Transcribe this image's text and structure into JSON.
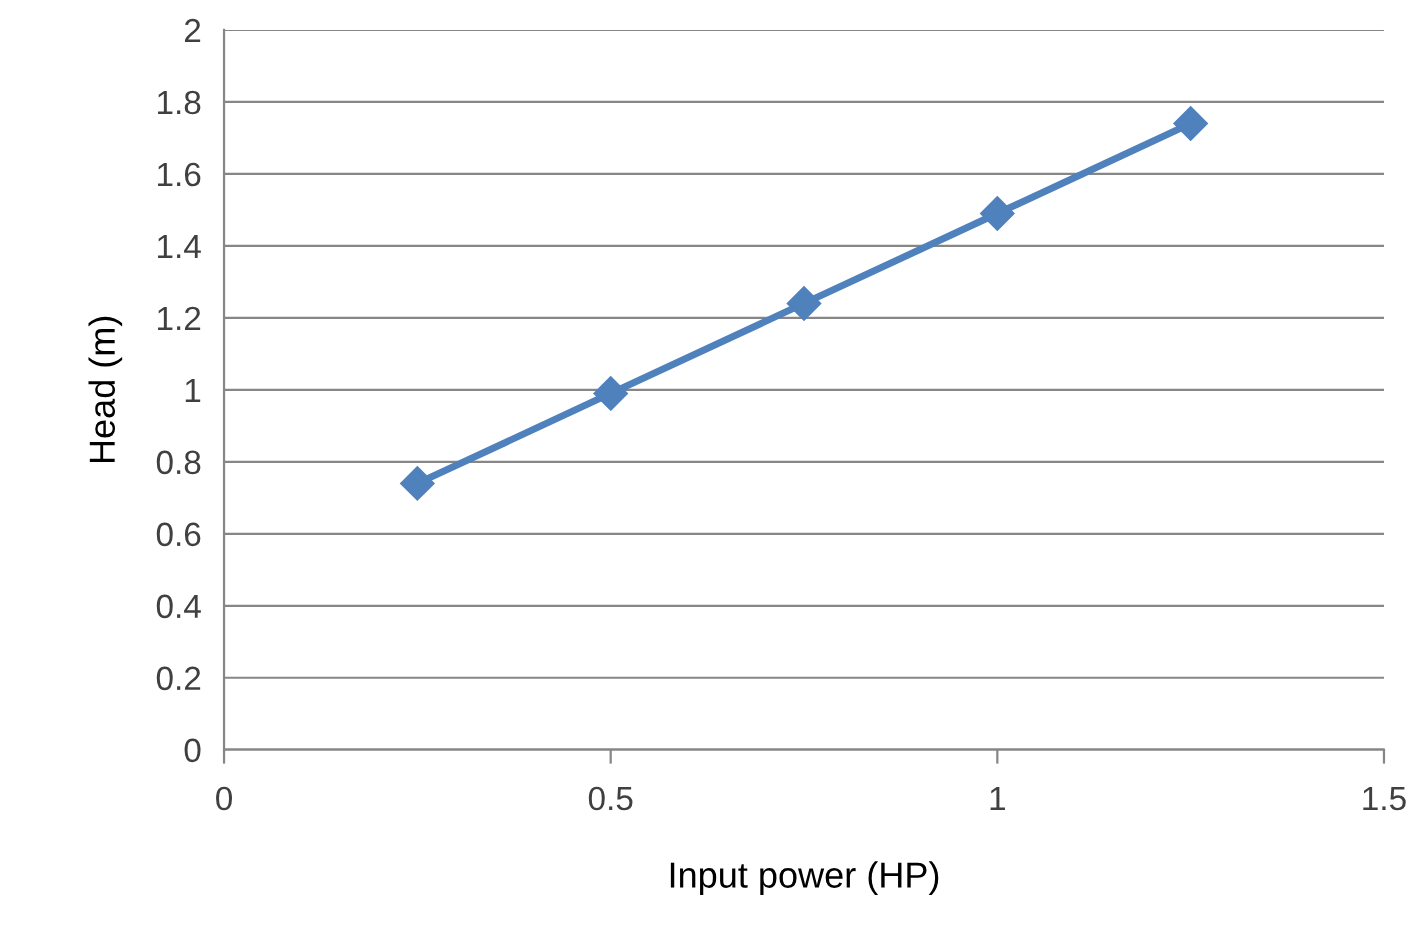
{
  "chart_data": {
    "type": "line",
    "xlabel": "Input power (HP)",
    "ylabel": "Head (m)",
    "x": [
      0.25,
      0.5,
      0.75,
      1.0,
      1.25
    ],
    "series": [
      {
        "color": "#4f81bd",
        "values": [
          0.74,
          0.99,
          1.24,
          1.49,
          1.74
        ]
      }
    ],
    "xlim": [
      0,
      1.5
    ],
    "xticks": [
      0,
      0.5,
      1,
      1.5
    ],
    "ylim": [
      0,
      2
    ],
    "yticks": [
      0,
      0.2,
      0.4,
      0.6,
      0.8,
      1,
      1.2,
      1.4,
      1.6,
      1.8,
      2
    ],
    "grid": "y",
    "marker": "diamond",
    "line_style": "solid"
  }
}
